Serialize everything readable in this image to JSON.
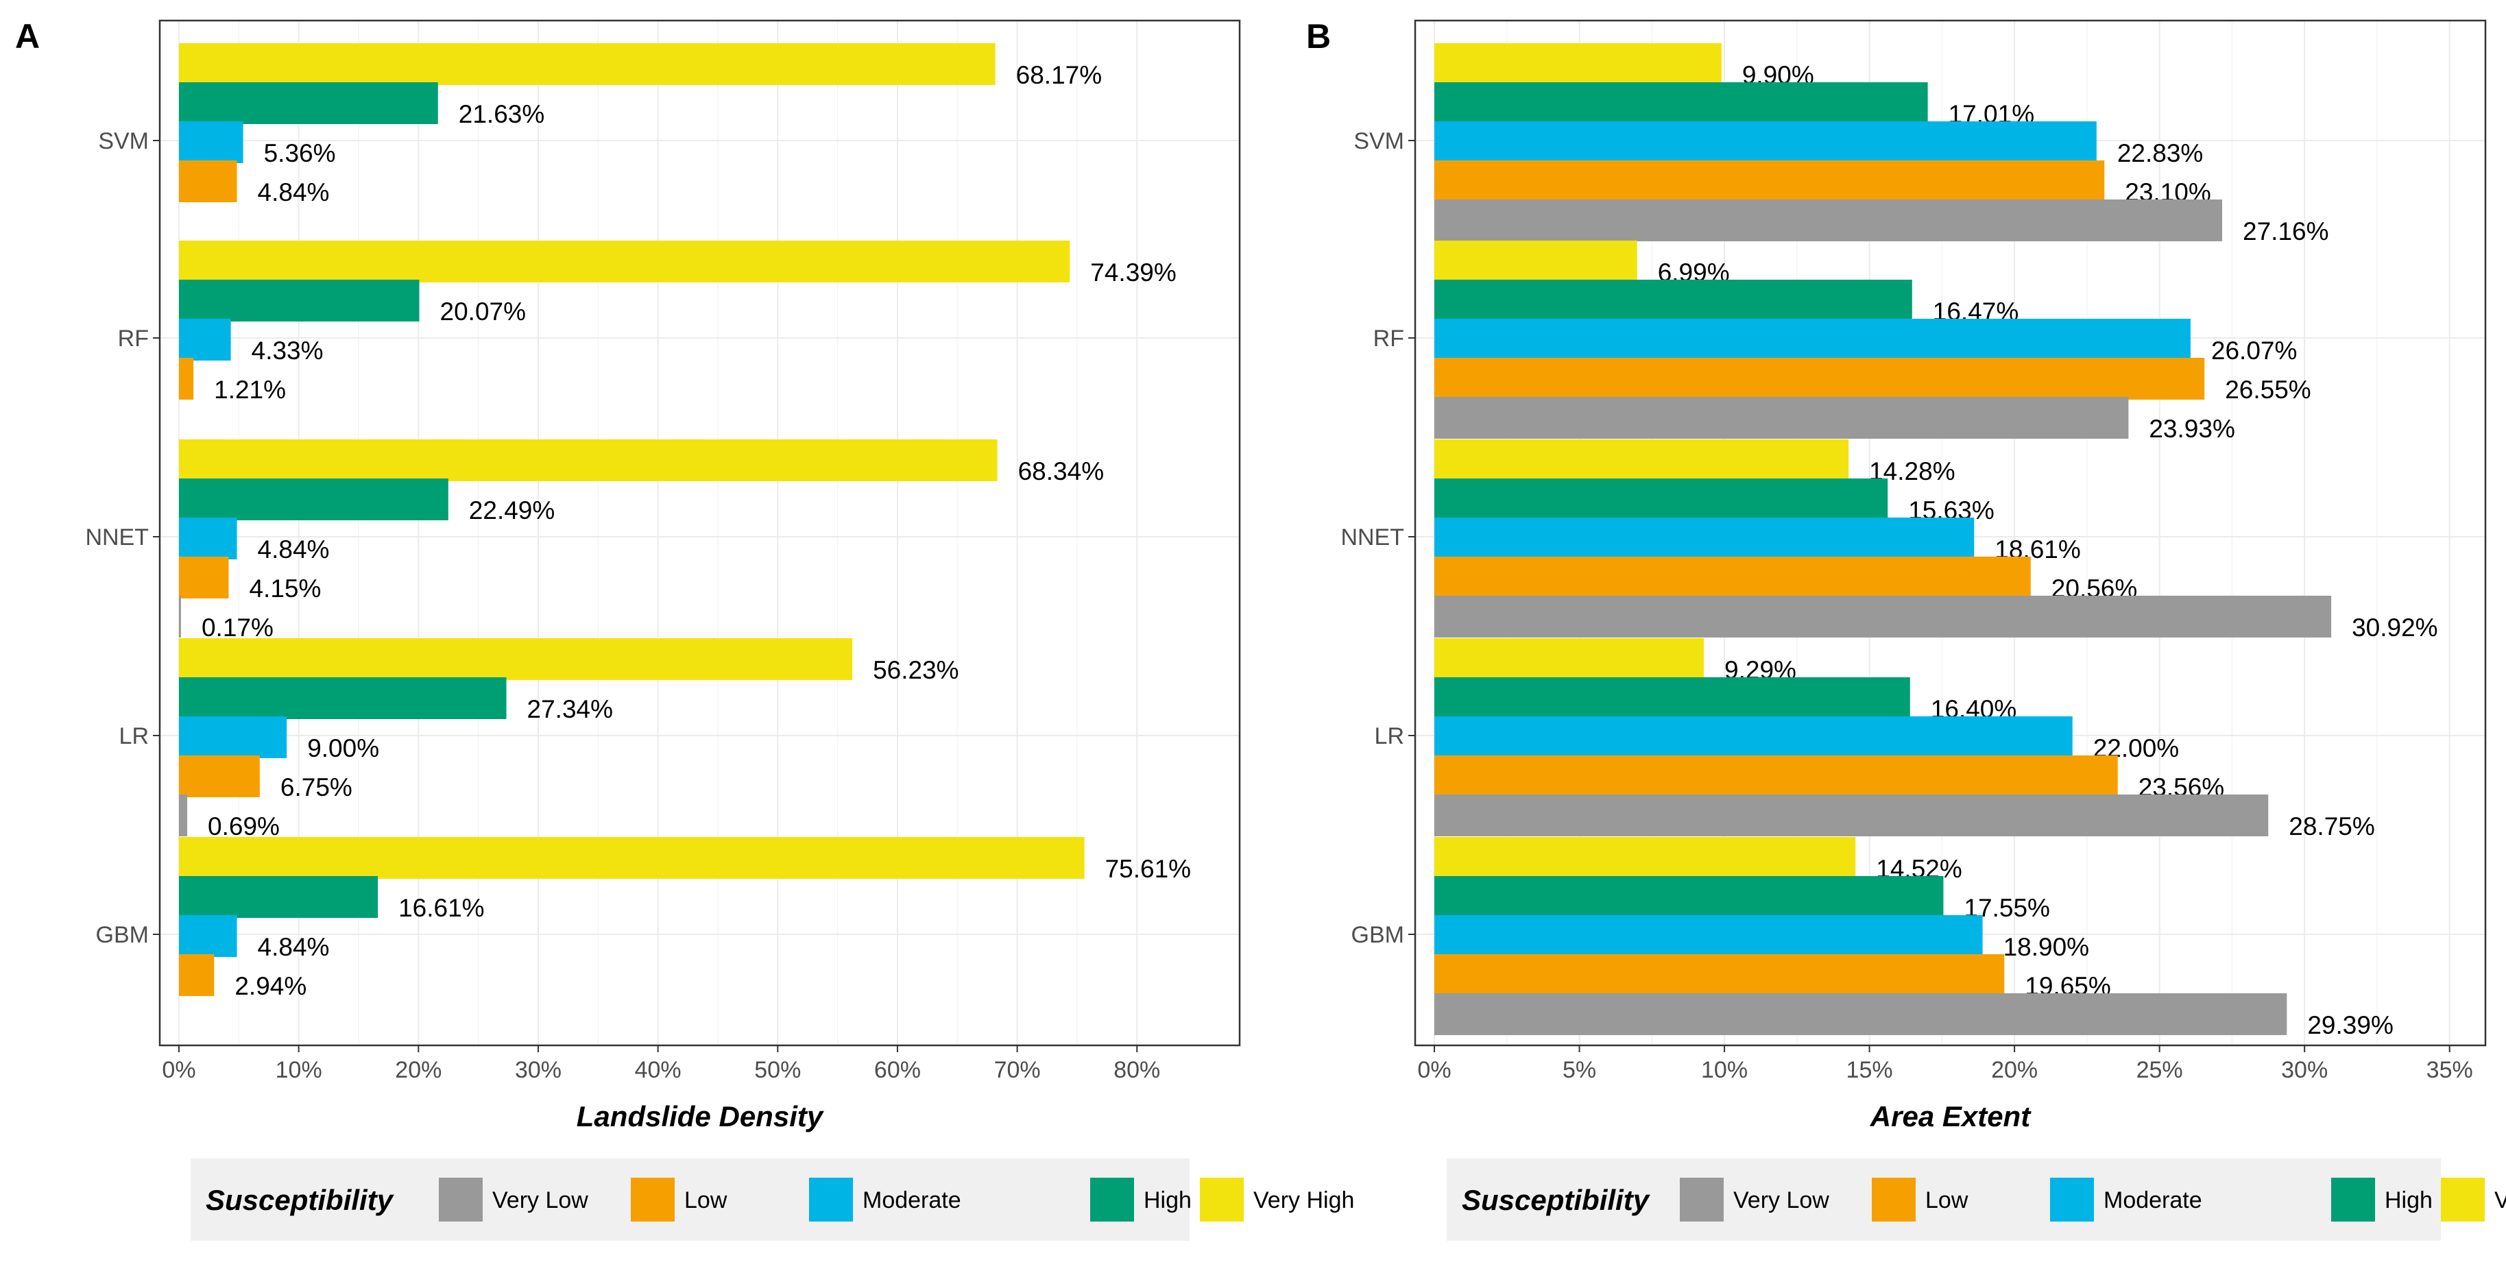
{
  "chart_data": [
    {
      "type": "bar",
      "orientation": "horizontal",
      "panel_label": "A",
      "xlabel": "Landslide Density",
      "ylabel": "",
      "xlim": [
        0,
        0.88
      ],
      "x_ticks": [
        {
          "value": 0,
          "label": "0%"
        },
        {
          "value": 0.1,
          "label": "10%"
        },
        {
          "value": 0.2,
          "label": "20%"
        },
        {
          "value": 0.3,
          "label": "30%"
        },
        {
          "value": 0.4,
          "label": "40%"
        },
        {
          "value": 0.5,
          "label": "50%"
        },
        {
          "value": 0.6,
          "label": "60%"
        },
        {
          "value": 0.7,
          "label": "70%"
        },
        {
          "value": 0.8,
          "label": "80%"
        }
      ],
      "categories": [
        "SVM",
        "RF",
        "NNET",
        "LR",
        "GBM"
      ],
      "series": [
        {
          "name": "Very High",
          "color": "#f2e30f",
          "values": [
            0.6817,
            0.7439,
            0.6834,
            0.5623,
            0.7561
          ],
          "labels": [
            "68.17%",
            "74.39%",
            "68.34%",
            "56.23%",
            "75.61%"
          ]
        },
        {
          "name": "High",
          "color": "#009e73",
          "values": [
            0.2163,
            0.2007,
            0.2249,
            0.2734,
            0.1661
          ],
          "labels": [
            "21.63%",
            "20.07%",
            "22.49%",
            "27.34%",
            "16.61%"
          ]
        },
        {
          "name": "Moderate",
          "color": "#00b4e6",
          "values": [
            0.0536,
            0.0433,
            0.0484,
            0.09,
            0.0484
          ],
          "labels": [
            "5.36%",
            "4.33%",
            "4.84%",
            "9.00%",
            "4.84%"
          ]
        },
        {
          "name": "Low",
          "color": "#f5a000",
          "values": [
            0.0484,
            0.0121,
            0.0415,
            0.0675,
            0.0294
          ],
          "labels": [
            "4.84%",
            "1.21%",
            "4.15%",
            "6.75%",
            "2.94%"
          ]
        },
        {
          "name": "Very Low",
          "color": "#999999",
          "values": [
            null,
            null,
            0.0017,
            0.0069,
            null
          ],
          "labels": [
            null,
            null,
            "0.17%",
            "0.69%",
            null
          ]
        }
      ],
      "legend": {
        "title": "Susceptibility",
        "position": "bottom",
        "entries": [
          {
            "name": "Very Low",
            "color": "#999999"
          },
          {
            "name": "Low",
            "color": "#f5a000"
          },
          {
            "name": "Moderate",
            "color": "#00b4e6"
          },
          {
            "name": "High",
            "color": "#009e73"
          },
          {
            "name": "Very High",
            "color": "#f2e30f"
          }
        ]
      }
    },
    {
      "type": "bar",
      "orientation": "horizontal",
      "panel_label": "B",
      "xlabel": "Area Extent",
      "ylabel": "",
      "xlim": [
        0,
        0.36
      ],
      "x_ticks": [
        {
          "value": 0,
          "label": "0%"
        },
        {
          "value": 0.05,
          "label": "5%"
        },
        {
          "value": 0.1,
          "label": "10%"
        },
        {
          "value": 0.15,
          "label": "15%"
        },
        {
          "value": 0.2,
          "label": "20%"
        },
        {
          "value": 0.25,
          "label": "25%"
        },
        {
          "value": 0.3,
          "label": "30%"
        },
        {
          "value": 0.35,
          "label": "35%"
        }
      ],
      "categories": [
        "SVM",
        "RF",
        "NNET",
        "LR",
        "GBM"
      ],
      "series": [
        {
          "name": "Very High",
          "color": "#f2e30f",
          "values": [
            0.099,
            0.0699,
            0.1428,
            0.0929,
            0.1452
          ],
          "labels": [
            "9.90%",
            "6.99%",
            "14.28%",
            "9.29%",
            "14.52%"
          ]
        },
        {
          "name": "High",
          "color": "#009e73",
          "values": [
            0.1701,
            0.1647,
            0.1563,
            0.164,
            0.1755
          ],
          "labels": [
            "17.01%",
            "16.47%",
            "15.63%",
            "16.40%",
            "17.55%"
          ]
        },
        {
          "name": "Moderate",
          "color": "#00b4e6",
          "values": [
            0.2283,
            0.2607,
            0.1861,
            0.22,
            0.189
          ],
          "labels": [
            "22.83%",
            "26.07%",
            "18.61%",
            "22.00%",
            "18.90%"
          ]
        },
        {
          "name": "Low",
          "color": "#f5a000",
          "values": [
            0.231,
            0.2655,
            0.2056,
            0.2356,
            0.1965
          ],
          "labels": [
            "23.10%",
            "26.55%",
            "20.56%",
            "23.56%",
            "19.65%"
          ]
        },
        {
          "name": "Very Low",
          "color": "#999999",
          "values": [
            0.2716,
            0.2393,
            0.3092,
            0.2875,
            0.2939
          ],
          "labels": [
            "27.16%",
            "23.93%",
            "30.92%",
            "28.75%",
            "29.39%"
          ]
        }
      ],
      "legend": {
        "title": "Susceptibility",
        "position": "bottom",
        "entries": [
          {
            "name": "Very Low",
            "color": "#999999"
          },
          {
            "name": "Low",
            "color": "#f5a000"
          },
          {
            "name": "Moderate",
            "color": "#00b4e6"
          },
          {
            "name": "High",
            "color": "#009e73"
          },
          {
            "name": "Very High",
            "color": "#f2e30f"
          }
        ]
      }
    }
  ]
}
